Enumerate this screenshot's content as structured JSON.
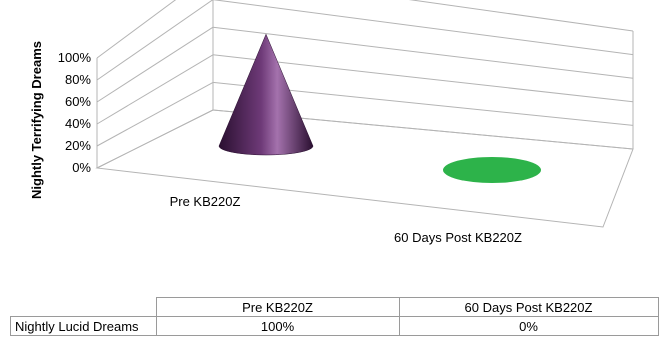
{
  "chart_data": {
    "type": "bar",
    "bar_shape": "cone-3d",
    "categories": [
      "Pre KB220Z",
      "60 Days Post KB220Z"
    ],
    "series": [
      {
        "name": "Nightly Lucid Dreams",
        "values": [
          100,
          0
        ]
      }
    ],
    "ylabel": "Nightly Terrifying Dreams",
    "ylim": [
      0,
      100
    ],
    "yticks": [
      0,
      20,
      40,
      60,
      80,
      100
    ],
    "ytick_labels": [
      "0%",
      "20%",
      "40%",
      "60%",
      "80%",
      "100%"
    ],
    "grid": true,
    "legend": "none",
    "colors": [
      "#4a1e52",
      "#2db34a"
    ],
    "data_table": {
      "headers": [
        "Pre KB220Z",
        "60 Days Post KB220Z"
      ],
      "rows": [
        {
          "label": "Nightly Lucid Dreams",
          "cells": [
            "100%",
            "0%"
          ]
        }
      ]
    }
  }
}
